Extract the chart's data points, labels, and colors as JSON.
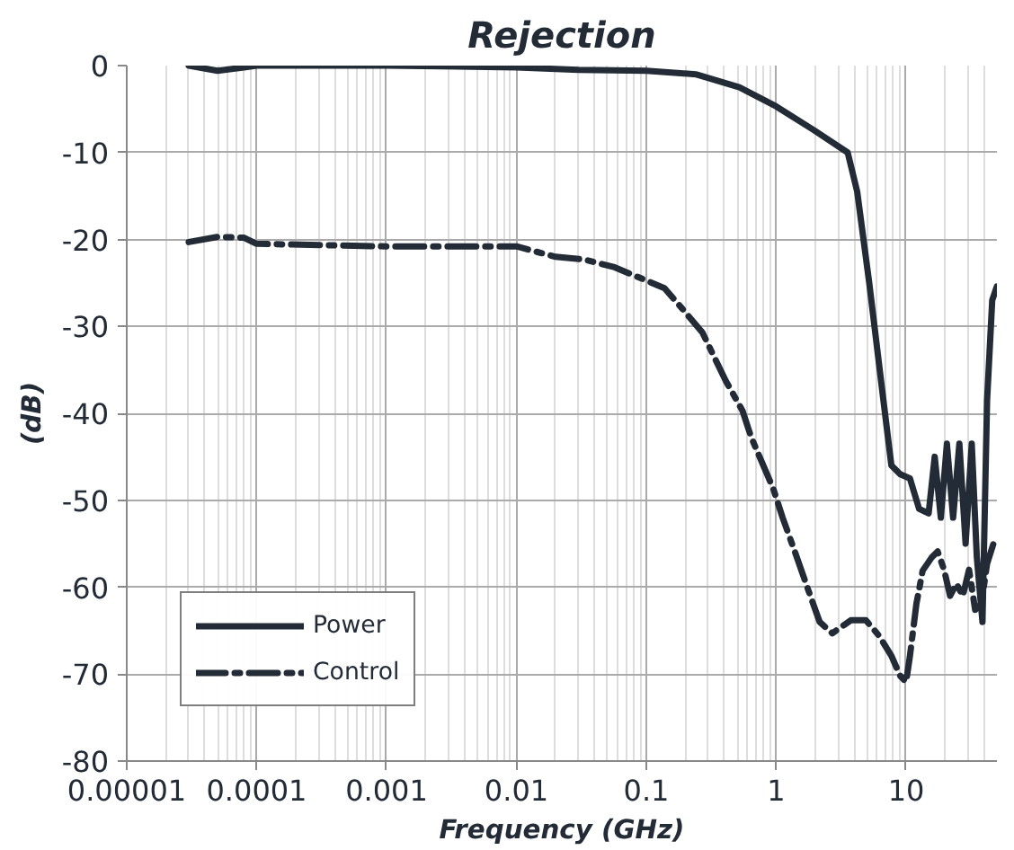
{
  "chart_data": {
    "type": "line",
    "title": "Rejection",
    "xlabel": "Frequency (GHz)",
    "ylabel": "(dB)",
    "log": "x",
    "xlim": [
      1e-05,
      50
    ],
    "ylim": [
      -80,
      0
    ],
    "xticks": [
      {
        "value": 1e-05,
        "label": "0.00001"
      },
      {
        "value": 0.0001,
        "label": "0.0001"
      },
      {
        "value": 0.001,
        "label": "0.001"
      },
      {
        "value": 0.01,
        "label": "0.01"
      },
      {
        "value": 0.1,
        "label": "0.1"
      },
      {
        "value": 1,
        "label": "1"
      },
      {
        "value": 10,
        "label": "10"
      }
    ],
    "yticks": [
      -80,
      -70,
      -60,
      -50,
      -40,
      -30,
      -20,
      -10,
      0
    ],
    "grid": true,
    "legend": "bottom left",
    "series": [
      {
        "name": "Power",
        "color": "#222b36",
        "line_style": "solid",
        "x": [
          3e-05,
          5e-05,
          8e-05,
          0.0001,
          0.001,
          0.01,
          0.03,
          0.1,
          0.24,
          0.52,
          1,
          1.94,
          3.55,
          4.2,
          5.2,
          6.5,
          7.7,
          9.0,
          10.7,
          12.6,
          14.9,
          16.6,
          18.5,
          20.6,
          23,
          25.7,
          28.7,
          32,
          35,
          38.7,
          42,
          46,
          50
        ],
        "values": [
          0,
          -0.6,
          -0.2,
          0,
          0,
          -0.2,
          -0.5,
          -0.6,
          -1,
          -2.5,
          -4.7,
          -7.4,
          -10,
          -14.5,
          -25,
          -37,
          -46,
          -47,
          -47.5,
          -51,
          -51.5,
          -45,
          -52,
          -43.5,
          -52,
          -43.5,
          -55,
          -43.5,
          -56.5,
          -64,
          -38.5,
          -27,
          -25.4
        ]
      },
      {
        "name": "Control",
        "color": "#222b36",
        "line_style": "dashdot",
        "x": [
          3e-05,
          5e-05,
          8e-05,
          0.0001,
          0.001,
          0.01,
          0.02,
          0.033,
          0.057,
          0.138,
          0.19,
          0.27,
          0.41,
          0.55,
          0.64,
          0.95,
          1.12,
          1.39,
          1.83,
          2.16,
          2.7,
          3.75,
          4.9,
          6.2,
          7.7,
          9.0,
          10,
          10.7,
          12,
          13.4,
          15.7,
          17.5,
          19.6,
          21.8,
          24.4,
          27.3,
          30.5,
          34,
          38,
          42,
          47
        ],
        "values": [
          -20.3,
          -19.7,
          -19.8,
          -20.5,
          -20.8,
          -20.8,
          -22,
          -22.3,
          -23.2,
          -25.6,
          -28,
          -30.7,
          -36.3,
          -39.7,
          -42.7,
          -48.7,
          -52,
          -55.9,
          -61,
          -64,
          -65.3,
          -63.8,
          -63.8,
          -65.6,
          -67.9,
          -70.2,
          -70.9,
          -67.9,
          -61.9,
          -58.1,
          -56.6,
          -55.9,
          -58,
          -61,
          -59.6,
          -61,
          -58,
          -62.6,
          -61.9,
          -57.3,
          -55
        ]
      }
    ]
  }
}
